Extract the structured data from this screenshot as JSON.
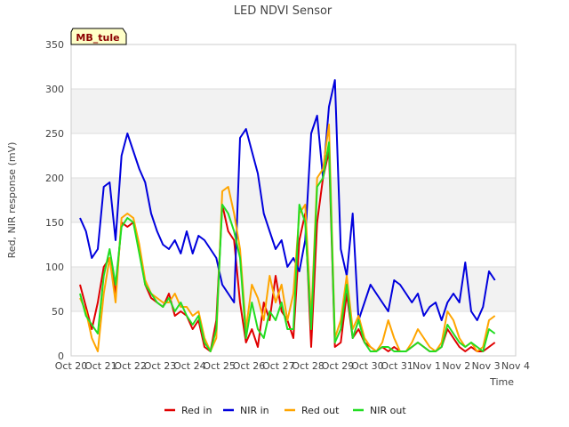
{
  "chart_data": {
    "type": "line",
    "title": "LED NDVI Sensor",
    "site_badge": "MB_tule",
    "xlabel": "Time",
    "ylabel": "Red, NIR response (mV)",
    "xlim": [
      "Oct 20",
      "Nov 4"
    ],
    "ylim": [
      0,
      350
    ],
    "x_ticks": [
      "Oct 20",
      "Oct 21",
      "Oct 22",
      "Oct 23",
      "Oct 24",
      "Oct 25",
      "Oct 26",
      "Oct 27",
      "Oct 28",
      "Oct 29",
      "Oct 30",
      "Oct 31",
      "Nov 1",
      "Nov 2",
      "Nov 3",
      "Nov 4"
    ],
    "y_ticks": [
      0,
      50,
      100,
      150,
      200,
      250,
      300,
      350
    ],
    "grid": true,
    "legend_position": "bottom",
    "series": [
      {
        "name": "Red in",
        "color": "#e00000",
        "x": [
          0.3,
          0.5,
          0.7,
          0.9,
          1.1,
          1.3,
          1.5,
          1.7,
          1.9,
          2.1,
          2.3,
          2.5,
          2.7,
          2.9,
          3.1,
          3.3,
          3.5,
          3.7,
          3.9,
          4.1,
          4.3,
          4.5,
          4.7,
          4.9,
          5.1,
          5.3,
          5.5,
          5.7,
          5.9,
          6.1,
          6.3,
          6.5,
          6.7,
          6.9,
          7.1,
          7.3,
          7.5,
          7.7,
          7.9,
          8.1,
          8.3,
          8.5,
          8.7,
          8.9,
          9.1,
          9.3,
          9.5,
          9.7,
          9.9,
          10.1,
          10.3,
          10.5,
          10.7,
          10.9,
          11.1,
          11.3,
          11.5,
          11.7,
          11.9,
          12.1,
          12.3,
          12.5,
          12.7,
          12.9,
          13.1,
          13.3,
          13.5,
          13.7,
          13.9,
          14.1,
          14.3
        ],
        "y": [
          80,
          55,
          30,
          60,
          100,
          110,
          70,
          150,
          145,
          150,
          120,
          80,
          65,
          60,
          55,
          70,
          45,
          50,
          45,
          30,
          40,
          10,
          5,
          40,
          170,
          140,
          130,
          60,
          15,
          30,
          10,
          60,
          40,
          90,
          50,
          40,
          20,
          130,
          160,
          10,
          150,
          200,
          230,
          10,
          15,
          70,
          20,
          30,
          15,
          10,
          5,
          10,
          5,
          10,
          5,
          5,
          10,
          15,
          10,
          5,
          5,
          10,
          30,
          20,
          10,
          5,
          10,
          5,
          5,
          10,
          15
        ]
      },
      {
        "name": "NIR in",
        "color": "#0000dd",
        "x": [
          0.3,
          0.5,
          0.7,
          0.9,
          1.1,
          1.3,
          1.5,
          1.7,
          1.9,
          2.1,
          2.3,
          2.5,
          2.7,
          2.9,
          3.1,
          3.3,
          3.5,
          3.7,
          3.9,
          4.1,
          4.3,
          4.5,
          4.7,
          4.9,
          5.1,
          5.3,
          5.5,
          5.7,
          5.9,
          6.1,
          6.3,
          6.5,
          6.7,
          6.9,
          7.1,
          7.3,
          7.5,
          7.7,
          7.9,
          8.1,
          8.3,
          8.5,
          8.7,
          8.9,
          9.1,
          9.3,
          9.5,
          9.7,
          9.9,
          10.1,
          10.3,
          10.5,
          10.7,
          10.9,
          11.1,
          11.3,
          11.5,
          11.7,
          11.9,
          12.1,
          12.3,
          12.5,
          12.7,
          12.9,
          13.1,
          13.3,
          13.5,
          13.7,
          13.9,
          14.1,
          14.3
        ],
        "y": [
          155,
          140,
          110,
          120,
          190,
          195,
          130,
          225,
          250,
          230,
          210,
          195,
          160,
          140,
          125,
          120,
          130,
          115,
          140,
          115,
          135,
          130,
          120,
          110,
          80,
          70,
          60,
          245,
          255,
          230,
          205,
          160,
          140,
          120,
          130,
          100,
          110,
          95,
          130,
          250,
          270,
          200,
          280,
          310,
          120,
          90,
          160,
          40,
          60,
          80,
          70,
          60,
          50,
          85,
          80,
          70,
          60,
          70,
          45,
          55,
          60,
          40,
          60,
          70,
          60,
          105,
          50,
          40,
          55,
          95,
          85
        ]
      },
      {
        "name": "Red out",
        "color": "#ffa500",
        "x": [
          0.3,
          0.5,
          0.7,
          0.9,
          1.1,
          1.3,
          1.5,
          1.7,
          1.9,
          2.1,
          2.3,
          2.5,
          2.7,
          2.9,
          3.1,
          3.3,
          3.5,
          3.7,
          3.9,
          4.1,
          4.3,
          4.5,
          4.7,
          4.9,
          5.1,
          5.3,
          5.5,
          5.7,
          5.9,
          6.1,
          6.3,
          6.5,
          6.7,
          6.9,
          7.1,
          7.3,
          7.5,
          7.7,
          7.9,
          8.1,
          8.3,
          8.5,
          8.7,
          8.9,
          9.1,
          9.3,
          9.5,
          9.7,
          9.9,
          10.1,
          10.3,
          10.5,
          10.7,
          10.9,
          11.1,
          11.3,
          11.5,
          11.7,
          11.9,
          12.1,
          12.3,
          12.5,
          12.7,
          12.9,
          13.1,
          13.3,
          13.5,
          13.7,
          13.9,
          14.1,
          14.3
        ],
        "y": [
          65,
          50,
          20,
          5,
          70,
          110,
          60,
          155,
          160,
          155,
          125,
          85,
          70,
          65,
          60,
          60,
          70,
          55,
          55,
          45,
          50,
          20,
          5,
          20,
          185,
          190,
          160,
          120,
          30,
          80,
          65,
          40,
          90,
          60,
          80,
          40,
          70,
          160,
          170,
          40,
          200,
          210,
          260,
          20,
          40,
          90,
          30,
          45,
          20,
          10,
          5,
          15,
          40,
          20,
          5,
          5,
          15,
          30,
          20,
          10,
          5,
          15,
          50,
          40,
          20,
          10,
          15,
          5,
          10,
          40,
          45
        ]
      },
      {
        "name": "NIR out",
        "color": "#22dd22",
        "x": [
          0.3,
          0.5,
          0.7,
          0.9,
          1.1,
          1.3,
          1.5,
          1.7,
          1.9,
          2.1,
          2.3,
          2.5,
          2.7,
          2.9,
          3.1,
          3.3,
          3.5,
          3.7,
          3.9,
          4.1,
          4.3,
          4.5,
          4.7,
          4.9,
          5.1,
          5.3,
          5.5,
          5.7,
          5.9,
          6.1,
          6.3,
          6.5,
          6.7,
          6.9,
          7.1,
          7.3,
          7.5,
          7.7,
          7.9,
          8.1,
          8.3,
          8.5,
          8.7,
          8.9,
          9.1,
          9.3,
          9.5,
          9.7,
          9.9,
          10.1,
          10.3,
          10.5,
          10.7,
          10.9,
          11.1,
          11.3,
          11.5,
          11.7,
          11.9,
          12.1,
          12.3,
          12.5,
          12.7,
          12.9,
          13.1,
          13.3,
          13.5,
          13.7,
          13.9,
          14.1,
          14.3
        ],
        "y": [
          70,
          45,
          35,
          25,
          90,
          120,
          80,
          145,
          155,
          150,
          115,
          80,
          70,
          60,
          55,
          65,
          50,
          60,
          45,
          35,
          45,
          15,
          5,
          30,
          170,
          160,
          140,
          110,
          20,
          60,
          30,
          20,
          50,
          40,
          60,
          30,
          30,
          170,
          150,
          30,
          190,
          200,
          240,
          15,
          30,
          80,
          20,
          40,
          15,
          5,
          5,
          10,
          10,
          5,
          5,
          5,
          10,
          15,
          10,
          5,
          5,
          10,
          35,
          25,
          15,
          10,
          15,
          10,
          5,
          30,
          25
        ]
      }
    ]
  }
}
